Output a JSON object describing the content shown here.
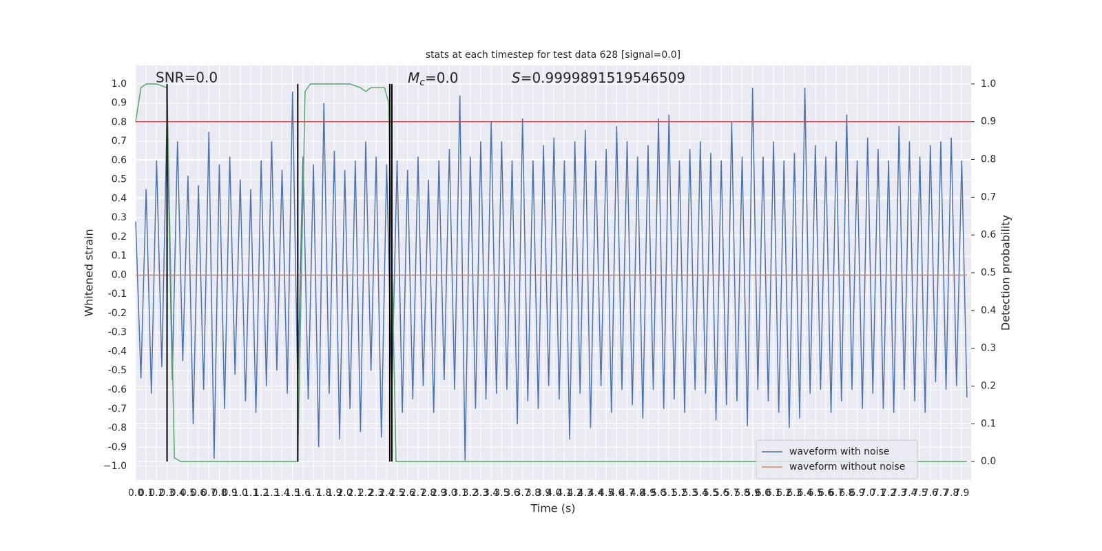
{
  "chart_data": {
    "type": "line",
    "title": "stats at each timestep for test data 628 [signal=0.0]",
    "x_label": "Time (s)",
    "y_label": "Whitened strain",
    "y2_label": "Detection probability",
    "annotations": {
      "snr": "SNR=0.0",
      "mc": {
        "symbol": "M",
        "subscript": "c",
        "text": "=0.0"
      },
      "s": {
        "symbol": "S",
        "text": "=0.9999891519546509"
      }
    },
    "xlim": [
      0,
      7.99
    ],
    "ylim": [
      -1.072,
      1.097
    ],
    "y2lim": [
      -0.049,
      1.049
    ],
    "xticks": [
      {
        "value": 0,
        "label": "0.0"
      },
      0.1,
      0.2,
      0.3,
      0.4,
      0.5,
      0.6,
      0.7,
      0.8,
      0.9,
      {
        "value": 1,
        "label": "1.0"
      },
      1.1,
      1.2,
      1.3,
      1.4,
      1.5,
      1.6,
      1.7,
      1.8,
      1.9,
      {
        "value": 2,
        "label": "2.0"
      },
      2.1,
      2.2,
      2.3,
      2.4,
      2.5,
      2.6,
      2.7,
      2.8,
      2.9,
      {
        "value": 3,
        "label": "3.0"
      },
      3.1,
      3.2,
      3.3,
      3.4,
      3.5,
      3.6,
      3.7,
      3.8,
      3.9,
      {
        "value": 4,
        "label": "4.0"
      },
      4.1,
      4.2,
      4.3,
      4.4,
      4.5,
      4.6,
      4.7,
      4.8,
      4.9,
      {
        "value": 5,
        "label": "5.0"
      },
      5.1,
      5.2,
      5.3,
      5.4,
      5.5,
      5.6,
      5.7,
      5.8,
      5.9,
      {
        "value": 6,
        "label": "6.0"
      },
      6.1,
      6.2,
      6.3,
      6.4,
      6.5,
      6.6,
      6.7,
      6.8,
      6.9,
      {
        "value": 7,
        "label": "7.0"
      },
      7.1,
      7.2,
      7.3,
      7.4,
      7.5,
      7.6,
      7.7,
      7.8,
      7.9
    ],
    "yticks": [
      {
        "value": -1,
        "label": "−1.0"
      },
      -0.9,
      -0.8,
      -0.7,
      -0.6,
      -0.5,
      -0.4,
      -0.3,
      -0.2,
      -0.1,
      {
        "value": 0,
        "label": "0.0"
      },
      0.1,
      0.2,
      0.3,
      0.4,
      0.5,
      0.6,
      0.7,
      0.8,
      0.9,
      {
        "value": 1,
        "label": "1.0"
      }
    ],
    "y2ticks": [
      {
        "value": 0,
        "label": "0.0"
      },
      0.1,
      0.2,
      0.3,
      0.4,
      0.5,
      0.6,
      0.7,
      0.8,
      0.9,
      {
        "value": 1,
        "label": "1.0"
      }
    ],
    "grid": true,
    "legend": "lower right",
    "series": [
      {
        "name": "waveform with noise",
        "color": "#4c72b0",
        "x": [
          0,
          0.05,
          0.1,
          0.15,
          0.2,
          0.25,
          0.3,
          0.35,
          0.4,
          0.45,
          0.5,
          0.55,
          0.6,
          0.65,
          0.7,
          0.75,
          0.8,
          0.85,
          0.9,
          0.95,
          1,
          1.05,
          1.1,
          1.15,
          1.2,
          1.25,
          1.3,
          1.35,
          1.4,
          1.45,
          1.5,
          1.55,
          1.6,
          1.65,
          1.7,
          1.75,
          1.8,
          1.85,
          1.9,
          1.95,
          2,
          2.05,
          2.1,
          2.15,
          2.2,
          2.25,
          2.3,
          2.35,
          2.4,
          2.45,
          2.5,
          2.55,
          2.6,
          2.65,
          2.7,
          2.75,
          2.8,
          2.85,
          2.9,
          2.95,
          3,
          3.05,
          3.1,
          3.15,
          3.2,
          3.25,
          3.3,
          3.35,
          3.4,
          3.45,
          3.5,
          3.55,
          3.6,
          3.65,
          3.7,
          3.75,
          3.8,
          3.85,
          3.9,
          3.95,
          4,
          4.05,
          4.1,
          4.15,
          4.2,
          4.25,
          4.3,
          4.35,
          4.4,
          4.45,
          4.5,
          4.55,
          4.6,
          4.65,
          4.7,
          4.75,
          4.8,
          4.85,
          4.9,
          4.95,
          5,
          5.05,
          5.1,
          5.15,
          5.2,
          5.25,
          5.3,
          5.35,
          5.4,
          5.45,
          5.5,
          5.55,
          5.6,
          5.65,
          5.7,
          5.75,
          5.8,
          5.85,
          5.9,
          5.95,
          6,
          6.05,
          6.1,
          6.15,
          6.2,
          6.25,
          6.3,
          6.35,
          6.4,
          6.45,
          6.5,
          6.55,
          6.6,
          6.65,
          6.7,
          6.75,
          6.8,
          6.85,
          6.9,
          6.95,
          7,
          7.05,
          7.1,
          7.15,
          7.2,
          7.25,
          7.3,
          7.35,
          7.4,
          7.45,
          7.5,
          7.55,
          7.6,
          7.65,
          7.7,
          7.75,
          7.8,
          7.85,
          7.9,
          7.95
        ],
        "values": [
          0.28,
          -0.54,
          0.45,
          -0.62,
          0.6,
          -0.48,
          0.84,
          -0.55,
          0.7,
          -0.45,
          0.52,
          -0.78,
          0.47,
          -0.6,
          0.75,
          -0.96,
          0.58,
          -0.7,
          0.62,
          -0.52,
          0.5,
          -0.66,
          0.45,
          -0.72,
          0.6,
          -0.58,
          0.7,
          -0.5,
          0.55,
          -0.62,
          0.96,
          -0.6,
          0.62,
          -0.65,
          0.58,
          -0.9,
          0.9,
          -0.62,
          0.65,
          -0.86,
          0.55,
          -0.7,
          0.6,
          -0.82,
          0.7,
          -0.5,
          0.62,
          -0.85,
          0.58,
          -0.6,
          0.6,
          -0.72,
          0.55,
          -0.65,
          0.62,
          -0.58,
          0.5,
          -0.72,
          0.6,
          -0.55,
          0.66,
          -0.6,
          0.94,
          -0.97,
          0.62,
          -0.7,
          0.7,
          -0.65,
          0.8,
          -0.62,
          0.7,
          -0.6,
          0.6,
          -0.78,
          0.82,
          -0.66,
          0.6,
          -0.7,
          0.68,
          -0.58,
          0.72,
          -0.65,
          0.6,
          -0.86,
          0.7,
          -0.62,
          0.76,
          -0.8,
          0.6,
          -0.58,
          0.66,
          -0.72,
          0.78,
          -0.6,
          0.7,
          -0.68,
          0.62,
          -0.75,
          0.68,
          -0.6,
          0.82,
          -0.7,
          0.84,
          -0.65,
          0.6,
          -0.72,
          0.66,
          -0.6,
          0.7,
          -0.62,
          0.64,
          -0.76,
          0.6,
          -0.68,
          0.8,
          -0.66,
          0.62,
          -0.79,
          0.98,
          -0.6,
          0.62,
          -0.66,
          0.7,
          -0.72,
          0.6,
          -0.8,
          0.64,
          -0.75,
          0.98,
          -0.62,
          0.68,
          -0.6,
          0.62,
          -0.72,
          0.7,
          -0.66,
          0.84,
          -0.6,
          0.6,
          -0.7,
          0.72,
          -0.62,
          0.66,
          -0.7,
          0.6,
          -0.72,
          0.78,
          -0.6,
          0.7,
          -0.66,
          0.62,
          -0.72,
          0.68,
          -0.56,
          0.7,
          -0.6,
          0.72,
          -0.58,
          0.6,
          -0.64
        ]
      },
      {
        "name": "waveform without noise",
        "color": "#dd8452",
        "x": [
          0,
          7.95
        ],
        "values": [
          0,
          0
        ]
      },
      {
        "color": "#55a868",
        "axis": "y2",
        "x": [
          0,
          0.05,
          0.1,
          0.2,
          0.3,
          0.37,
          0.43,
          1.55,
          1.62,
          1.67,
          2.05,
          2.15,
          2.2,
          2.25,
          2.38,
          2.42,
          2.49,
          7.95
        ],
        "values": [
          0.9,
          0.99,
          1,
          1,
          0.99,
          0.01,
          0,
          0,
          0.98,
          1,
          1,
          0.99,
          0.98,
          0.99,
          0.99,
          0.95,
          0,
          0
        ]
      }
    ],
    "hlines": [
      {
        "value": 0.9,
        "axis": "y2",
        "color": "#c44e52"
      }
    ],
    "vlines": {
      "x": [
        0.3,
        1.55,
        2.43,
        2.45
      ],
      "from": 0,
      "to": 1,
      "axis": "y2",
      "color": "#000000"
    }
  }
}
